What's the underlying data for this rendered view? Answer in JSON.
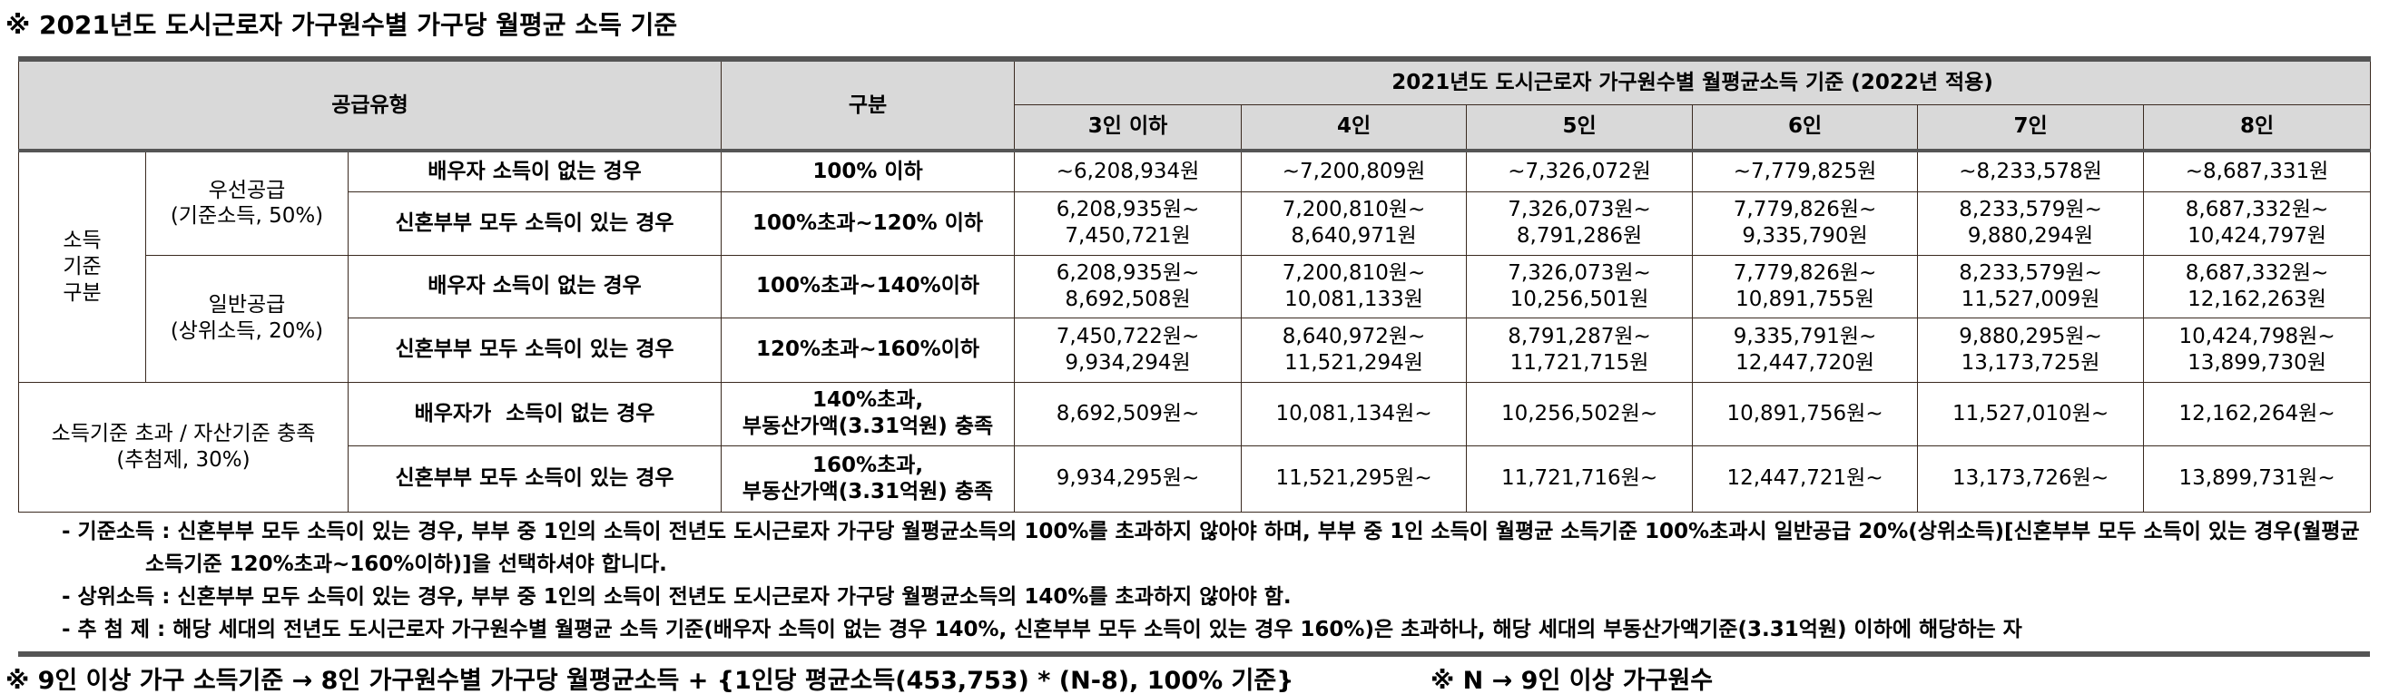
{
  "title": "※ 2021년도 도시근로자 가구원수별 가구당 월평균 소득 기준",
  "table": {
    "header": {
      "supply_type": "공급유형",
      "category": "구분",
      "group": "2021년도 도시근로자 가구원수별 월평균소득 기준 (2022년 적용)",
      "sizes": [
        "3인 이하",
        "4인",
        "5인",
        "6인",
        "7인",
        "8인"
      ]
    },
    "section_label": [
      "소득",
      "기준",
      "구분"
    ],
    "groups": [
      {
        "name": "우선공급",
        "sub": "(기준소득, 50%)",
        "rows": [
          {
            "condition": "배우자 소득이 없는 경우",
            "criterion": [
              "100% 이하"
            ],
            "values": [
              [
                "~6,208,934원"
              ],
              [
                "~7,200,809원"
              ],
              [
                "~7,326,072원"
              ],
              [
                "~7,779,825원"
              ],
              [
                "~8,233,578원"
              ],
              [
                "~8,687,331원"
              ]
            ]
          },
          {
            "condition": "신혼부부 모두 소득이 있는 경우",
            "criterion": [
              "100%초과~120% 이하"
            ],
            "values": [
              [
                "6,208,935원~",
                "7,450,721원"
              ],
              [
                "7,200,810원~",
                "8,640,971원"
              ],
              [
                "7,326,073원~",
                "8,791,286원"
              ],
              [
                "7,779,826원~",
                "9,335,790원"
              ],
              [
                "8,233,579원~",
                "9,880,294원"
              ],
              [
                "8,687,332원~",
                "10,424,797원"
              ]
            ]
          }
        ]
      },
      {
        "name": "일반공급",
        "sub": "(상위소득, 20%)",
        "rows": [
          {
            "condition": "배우자 소득이 없는 경우",
            "criterion": [
              "100%초과~140%이하"
            ],
            "values": [
              [
                "6,208,935원~",
                "8,692,508원"
              ],
              [
                "7,200,810원~",
                "10,081,133원"
              ],
              [
                "7,326,073원~",
                "10,256,501원"
              ],
              [
                "7,779,826원~",
                "10,891,755원"
              ],
              [
                "8,233,579원~",
                "11,527,009원"
              ],
              [
                "8,687,332원~",
                "12,162,263원"
              ]
            ]
          },
          {
            "condition": "신혼부부 모두 소득이 있는 경우",
            "criterion": [
              "120%초과~160%이하"
            ],
            "values": [
              [
                "7,450,722원~",
                "9,934,294원"
              ],
              [
                "8,640,972원~",
                "11,521,294원"
              ],
              [
                "8,791,287원~",
                "11,721,715원"
              ],
              [
                "9,335,791원~",
                "12,447,720원"
              ],
              [
                "9,880,295원~",
                "13,173,725원"
              ],
              [
                "10,424,798원~",
                "13,899,730원"
              ]
            ]
          }
        ]
      }
    ],
    "lottery": {
      "name": "소득기준 초과 / 자산기준 충족",
      "sub": "(추첨제, 30%)",
      "rows": [
        {
          "condition": "배우자가  소득이 없는 경우",
          "criterion": [
            "140%초과,",
            "부동산가액(3.31억원) 충족"
          ],
          "values": [
            [
              "8,692,509원~"
            ],
            [
              "10,081,134원~"
            ],
            [
              "10,256,502원~"
            ],
            [
              "10,891,756원~"
            ],
            [
              "11,527,010원~"
            ],
            [
              "12,162,264원~"
            ]
          ]
        },
        {
          "condition": "신혼부부 모두 소득이 있는 경우",
          "criterion": [
            "160%초과,",
            "부동산가액(3.31억원) 충족"
          ],
          "values": [
            [
              "9,934,295원~"
            ],
            [
              "11,521,295원~"
            ],
            [
              "11,721,716원~"
            ],
            [
              "12,447,721원~"
            ],
            [
              "13,173,726원~"
            ],
            [
              "13,899,731원~"
            ]
          ]
        }
      ]
    }
  },
  "notes": [
    {
      "label": "- 기준소득 :",
      "text": "신혼부부 모두 소득이 있는 경우, 부부 중 1인의 소득이 전년도 도시근로자 가구당 월평균소득의 100%를 초과하지 않아야 하며, 부부 중 1인 소득이 월평균 소득기준 100%초과시 일반공급 20%(상위소득)[신혼부부 모두 소득이 있는 경우(월평균 소득기준 120%초과~160%이하)]을 선택하셔야 합니다."
    },
    {
      "label": "- 상위소득 :",
      "text": "신혼부부 모두 소득이 있는 경우, 부부 중 1인의 소득이 전년도 도시근로자 가구당 월평균소득의 140%를 초과하지 않아야 함."
    },
    {
      "label": "- 추 첨 제 :",
      "text": "해당 세대의 전년도 도시근로자 가구원수별 월평균 소득 기준(배우자 소득이 없는 경우 140%, 신혼부부 모두 소득이 있는 경우 160%)은 초과하나, 해당 세대의 부동산가액기준(3.31억원) 이하에 해당하는 자"
    }
  ],
  "footer": {
    "left": "※ 9인 이상 가구 소득기준 → 8인 가구원수별 가구당 월평균소득 + {1인당 평균소득(453,753) * (N-8), 100% 기준}",
    "right": "※ N → 9인 이상 가구원수"
  }
}
